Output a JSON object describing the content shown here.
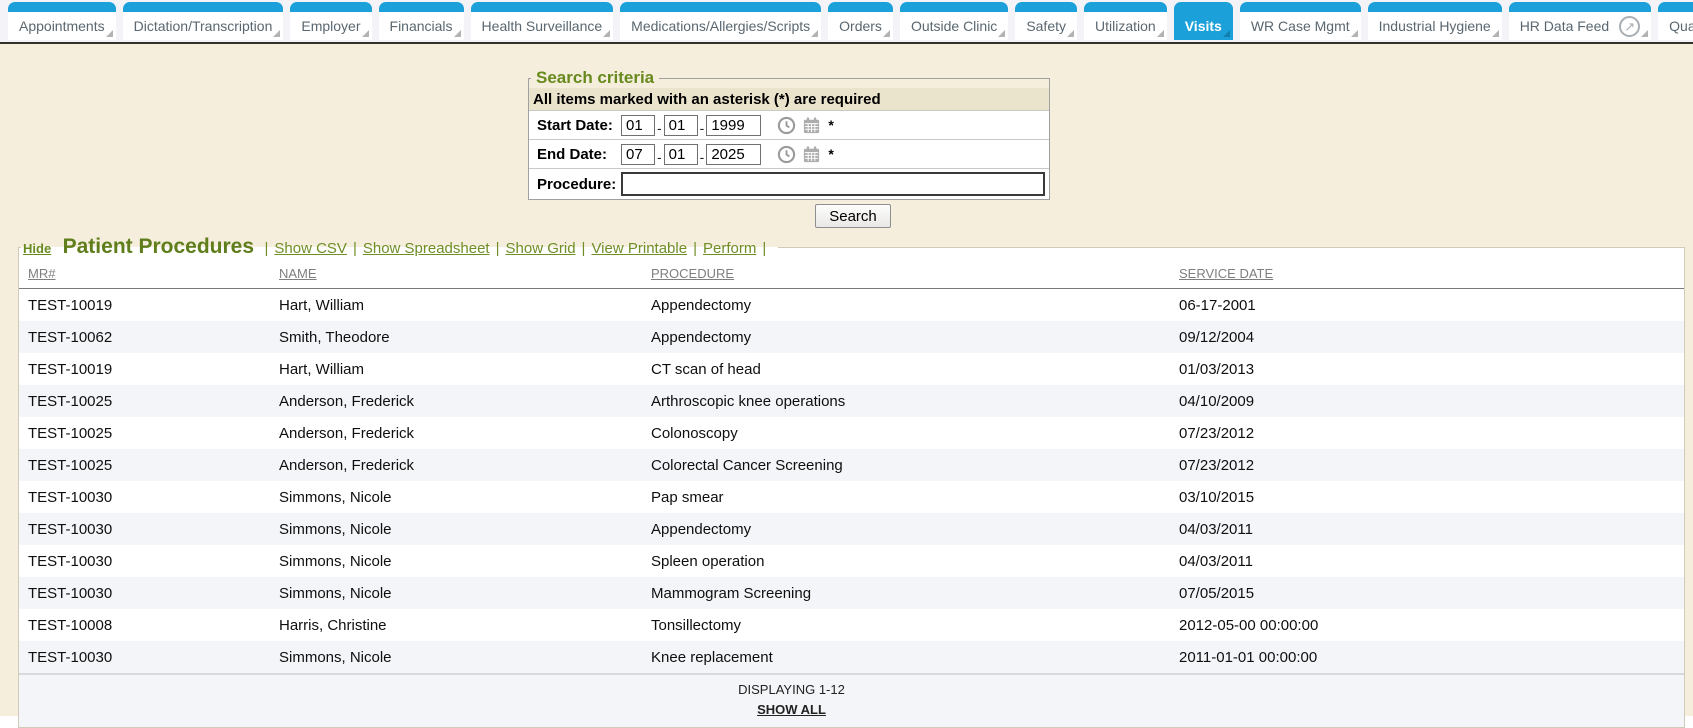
{
  "tab_bar": {
    "tabs": [
      {
        "label": "Appointments"
      },
      {
        "label": "Dictation/Transcription"
      },
      {
        "label": "Employer"
      },
      {
        "label": "Financials"
      },
      {
        "label": "Health Surveillance"
      },
      {
        "label": "Medications/Allergies/Scripts"
      },
      {
        "label": "Orders"
      },
      {
        "label": "Outside Clinic"
      },
      {
        "label": "Safety"
      },
      {
        "label": "Utilization"
      },
      {
        "label": "Visits",
        "active": true
      },
      {
        "label": "WR Case Mgmt"
      },
      {
        "label": "Industrial Hygiene"
      },
      {
        "label": "HR Data Feed",
        "external_icon": true
      },
      {
        "label": "Quality of"
      }
    ]
  },
  "search_criteria": {
    "legend": "Search criteria",
    "required_note": "All items marked with an asterisk (*) are required",
    "date_separator": "-",
    "fields": {
      "start_date": {
        "label": "Start Date:",
        "month": "01",
        "day": "01",
        "year": "1999",
        "required_marker": "*"
      },
      "end_date": {
        "label": "End Date:",
        "month": "07",
        "day": "01",
        "year": "2025",
        "required_marker": "*"
      },
      "procedure": {
        "label": "Procedure:",
        "value": ""
      }
    },
    "search_button_label": "Search"
  },
  "procedures_section": {
    "hide_link": "Hide",
    "title": "Patient Procedures",
    "links": [
      "Show CSV",
      "Show Spreadsheet",
      "Show Grid",
      "View Printable",
      "Perform"
    ],
    "table": {
      "columns": [
        "MR#",
        "NAME",
        "PROCEDURE",
        "SERVICE DATE"
      ],
      "rows": [
        [
          "TEST-10019",
          "Hart, William",
          "Appendectomy",
          "06-17-2001"
        ],
        [
          "TEST-10062",
          "Smith, Theodore",
          "Appendectomy",
          "09/12/2004"
        ],
        [
          "TEST-10019",
          "Hart, William",
          "CT scan of head",
          "01/03/2013"
        ],
        [
          "TEST-10025",
          "Anderson, Frederick",
          "Arthroscopic knee operations",
          "04/10/2009"
        ],
        [
          "TEST-10025",
          "Anderson, Frederick",
          "Colonoscopy",
          "07/23/2012"
        ],
        [
          "TEST-10025",
          "Anderson, Frederick",
          "Colorectal Cancer Screening",
          "07/23/2012"
        ],
        [
          "TEST-10030",
          "Simmons, Nicole",
          "Pap smear",
          "03/10/2015"
        ],
        [
          "TEST-10030",
          "Simmons, Nicole",
          "Appendectomy",
          "04/03/2011"
        ],
        [
          "TEST-10030",
          "Simmons, Nicole",
          "Spleen operation",
          "04/03/2011"
        ],
        [
          "TEST-10030",
          "Simmons, Nicole",
          "Mammogram Screening",
          "07/05/2015"
        ],
        [
          "TEST-10008",
          "Harris, Christine",
          "Tonsillectomy",
          "2012-05-00 00:00:00"
        ],
        [
          "TEST-10030",
          "Simmons, Nicole",
          "Knee replacement",
          "2011-01-01 00:00:00"
        ]
      ]
    },
    "footer": {
      "displaying": "DISPLAYING 1-12",
      "show_all": "SHOW ALL"
    }
  },
  "colors": {
    "accent_blue": "#1ba0d9",
    "olive_green": "#688a1d",
    "page_beige": "#f5eedd",
    "note_tan": "#ebe4cd",
    "alt_row": "#f4f5f8",
    "tab_divider": "#332f29"
  }
}
